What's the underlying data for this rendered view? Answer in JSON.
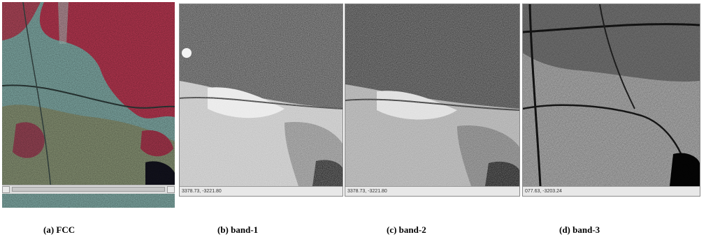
{
  "panels": [
    {
      "id": "fcc",
      "caption": "(a) FCC"
    },
    {
      "id": "band1",
      "caption": "(b) band-1",
      "coords": "3378.73, -3221.80"
    },
    {
      "id": "band2",
      "caption": "(c) band-2",
      "coords": "3378.73, -3221.80"
    },
    {
      "id": "band3",
      "caption": "(d) band-3",
      "coords": "077.63, -3203.24"
    }
  ],
  "colors": {
    "fcc_vegetation": "#c0304a",
    "fcc_urban": "#7fb3b0",
    "fcc_soil": "#8f9a78",
    "water": "#101018"
  }
}
